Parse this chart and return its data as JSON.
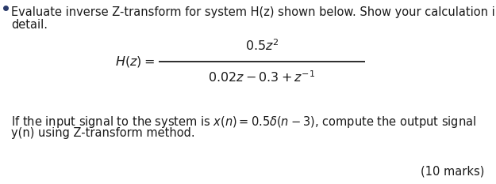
{
  "bg_color": "#ffffff",
  "text_color": "#1a1a1a",
  "line1": "Evaluate inverse Z-transform for system H(z) shown below. Show your calculation in",
  "line2": "detail.",
  "hz_label": "$H(z) =$",
  "fraction_numerator": "$0.5z^2$",
  "fraction_denominator": "$0.02z - 0.3 + z^{-1}$",
  "bottom_line1": "If the input signal to the system is $x(n) = 0.5\\delta(n - 3)$, compute the output signal",
  "bottom_line2": "y(n) using Z-transform method.",
  "marks_text": "(10 marks)",
  "font_size": 10.5,
  "font_size_math": 11.5
}
